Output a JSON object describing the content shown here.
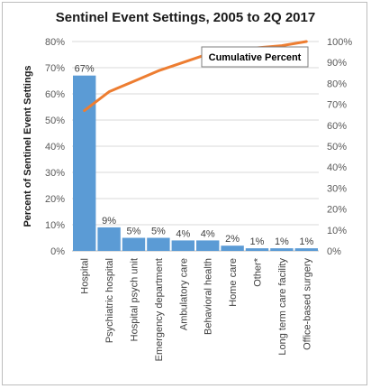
{
  "chart_data": {
    "type": "bar",
    "title": "Sentinel Event Settings, 2005 to 2Q 2017",
    "ylabel": "Percent of Sentinel Event Settings",
    "categories": [
      "Hospital",
      "Psychiatric hospital",
      "Hospital psych unit",
      "Emergency department",
      "Ambulatory care",
      "Behavioral health",
      "Home care",
      "Other*",
      "Long term care facility",
      "Office-based surgery"
    ],
    "values": [
      67,
      9,
      5,
      5,
      4,
      4,
      2,
      1,
      1,
      1
    ],
    "data_labels": [
      "67%",
      "9%",
      "5%",
      "5%",
      "4%",
      "4%",
      "2%",
      "1%",
      "1%",
      "1%"
    ],
    "ylim": [
      0,
      80
    ],
    "yticks": [
      "0%",
      "10%",
      "20%",
      "30%",
      "40%",
      "50%",
      "60%",
      "70%",
      "80%"
    ],
    "y2lim": [
      0,
      100
    ],
    "y2ticks": [
      "0%",
      "10%",
      "20%",
      "30%",
      "40%",
      "50%",
      "60%",
      "70%",
      "80%",
      "90%",
      "100%"
    ],
    "cumulative_series": {
      "name": "Cumulative Percent",
      "values": [
        67,
        76,
        81,
        86,
        90,
        94,
        96,
        97,
        98,
        100
      ]
    },
    "legend_position": "top-right",
    "grid": true,
    "colors": {
      "bar": "#5b9bd5",
      "line": "#ed7d31",
      "grid": "#d9d9d9"
    }
  }
}
